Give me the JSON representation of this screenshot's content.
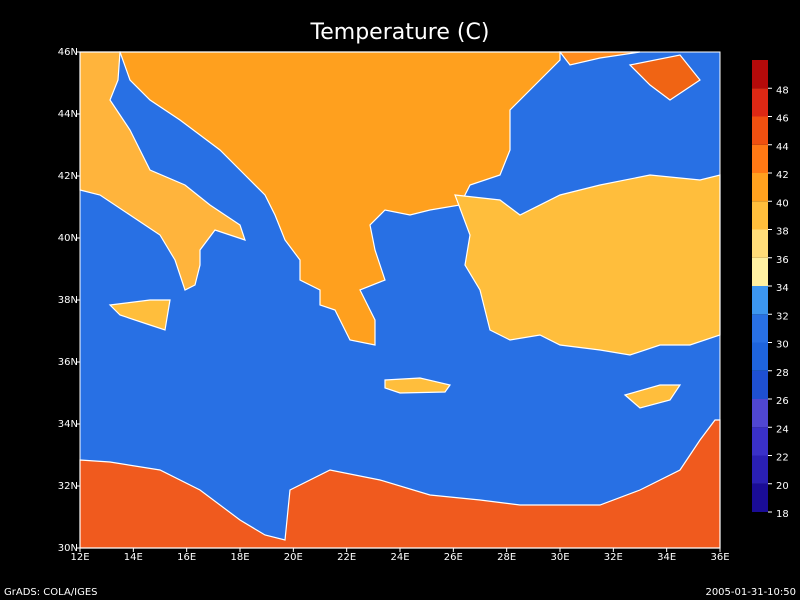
{
  "map": {
    "title": "Temperature (C)",
    "lat_ticks": [
      {
        "value": 30,
        "label": "30N"
      },
      {
        "value": 32,
        "label": "32N"
      },
      {
        "value": 34,
        "label": "34N"
      },
      {
        "value": 36,
        "label": "36N"
      },
      {
        "value": 38,
        "label": "38N"
      },
      {
        "value": 40,
        "label": "40N"
      },
      {
        "value": 42,
        "label": "42N"
      },
      {
        "value": 44,
        "label": "44N"
      },
      {
        "value": 46,
        "label": "46N"
      }
    ],
    "lon_ticks": [
      {
        "value": 12,
        "label": "12E"
      },
      {
        "value": 14,
        "label": "14E"
      },
      {
        "value": 16,
        "label": "16E"
      },
      {
        "value": 18,
        "label": "18E"
      },
      {
        "value": 20,
        "label": "20E"
      },
      {
        "value": 22,
        "label": "22E"
      },
      {
        "value": 24,
        "label": "24E"
      },
      {
        "value": 26,
        "label": "26E"
      },
      {
        "value": 28,
        "label": "28E"
      },
      {
        "value": 30,
        "label": "30E"
      },
      {
        "value": 32,
        "label": "32E"
      },
      {
        "value": 34,
        "label": "34E"
      },
      {
        "value": 36,
        "label": "36E"
      }
    ],
    "colorbar": {
      "levels": [
        18,
        20,
        22,
        24,
        26,
        28,
        30,
        32,
        34,
        36,
        38,
        40,
        42,
        44,
        46,
        48
      ],
      "colors": [
        "#1a0c96",
        "#2a1fb4",
        "#3a30c8",
        "#5046d2",
        "#1e50d2",
        "#1e64dc",
        "#2870e4",
        "#3c96f0",
        "#fff0a0",
        "#ffdc78",
        "#ffbe3c",
        "#ffa01e",
        "#ff7814",
        "#f05010",
        "#dc2814",
        "#b40a0a"
      ]
    },
    "footer_left": "GrADS: COLA/IGES",
    "footer_right": "2005-01-31-10:50"
  }
}
